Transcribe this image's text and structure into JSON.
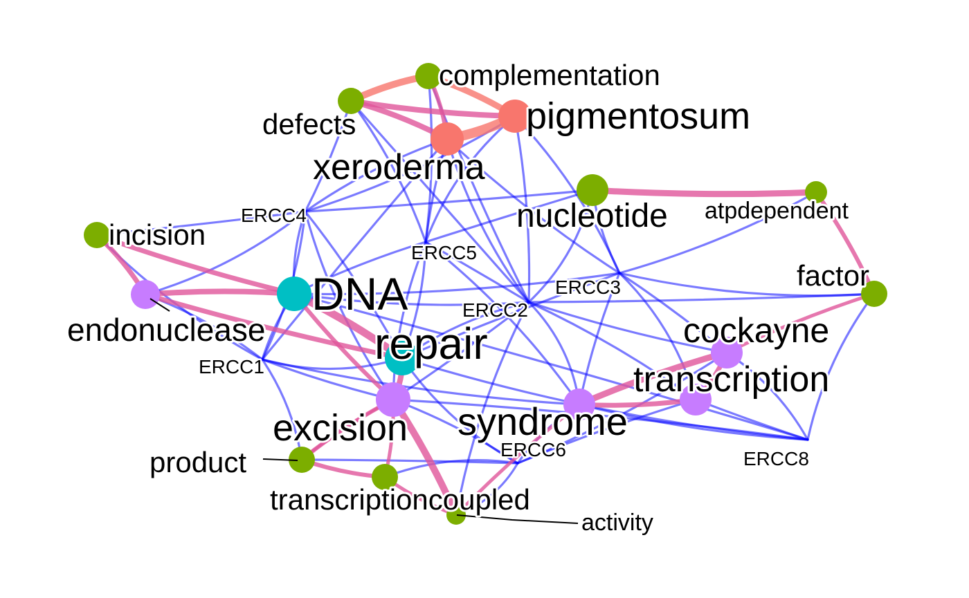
{
  "colors": {
    "gene_edge": "#0000ff",
    "word_edge": "#e0559a",
    "red_edge": "#f8766d",
    "cluster_red": "#f8766d",
    "cluster_green": "#7cae00",
    "cluster_teal": "#00bfc4",
    "cluster_purple": "#c77cff"
  },
  "nodes": {
    "complementation": {
      "label": "complementation",
      "cluster": "green"
    },
    "defects": {
      "label": "defects",
      "cluster": "green"
    },
    "pigmentosum": {
      "label": "pigmentosum",
      "cluster": "red"
    },
    "xeroderma": {
      "label": "xeroderma",
      "cluster": "red"
    },
    "nucleotide": {
      "label": "nucleotide",
      "cluster": "green"
    },
    "atpdependent": {
      "label": "atpdependent",
      "cluster": "green"
    },
    "incision": {
      "label": "incision",
      "cluster": "green"
    },
    "endonuclease": {
      "label": "endonuclease",
      "cluster": "purple"
    },
    "dna": {
      "label": "DNA",
      "cluster": "teal"
    },
    "repair": {
      "label": "repair",
      "cluster": "teal"
    },
    "factor": {
      "label": "factor",
      "cluster": "green"
    },
    "cockayne": {
      "label": "cockayne",
      "cluster": "purple"
    },
    "transcription": {
      "label": "transcription",
      "cluster": "purple"
    },
    "syndrome": {
      "label": "syndrome",
      "cluster": "purple"
    },
    "excision": {
      "label": "excision",
      "cluster": "purple"
    },
    "product": {
      "label": "product",
      "cluster": "green"
    },
    "transcriptioncoupled": {
      "label": "transcriptioncoupled",
      "cluster": "green"
    },
    "activity": {
      "label": "activity",
      "cluster": "green"
    }
  },
  "genes": {
    "ERCC1": {
      "label": "ERCC1"
    },
    "ERCC2": {
      "label": "ERCC2"
    },
    "ERCC3": {
      "label": "ERCC3"
    },
    "ERCC4": {
      "label": "ERCC4"
    },
    "ERCC5": {
      "label": "ERCC5"
    },
    "ERCC6": {
      "label": "ERCC6"
    },
    "ERCC8": {
      "label": "ERCC8"
    }
  }
}
